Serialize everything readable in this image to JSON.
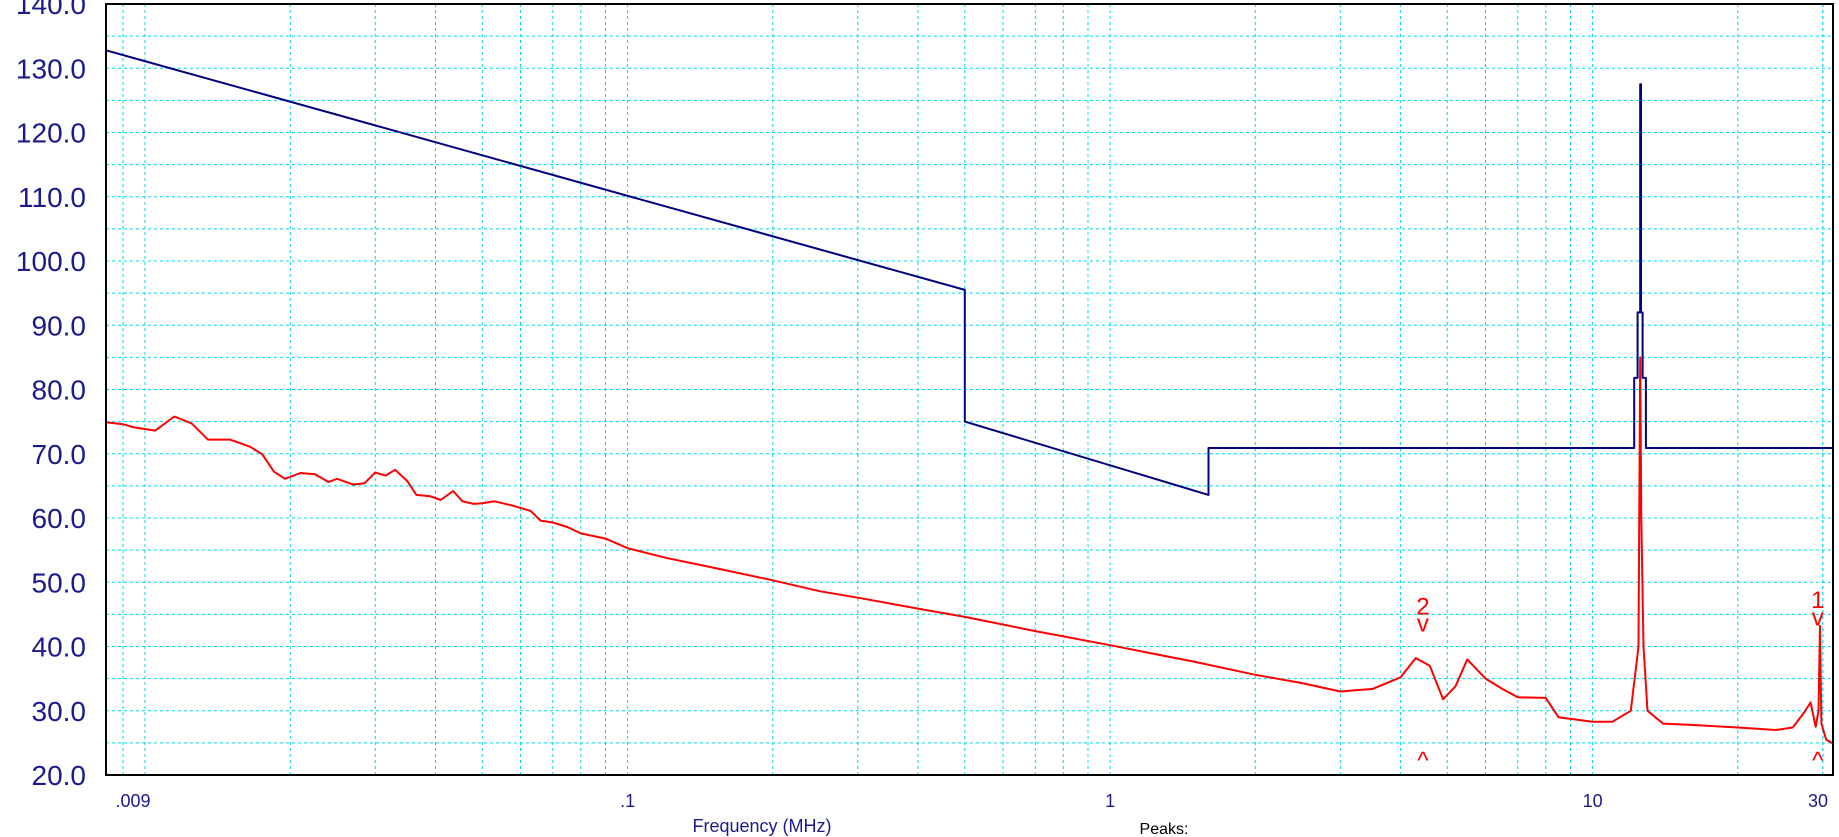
{
  "chart_data": {
    "type": "line",
    "title": "",
    "xlabel": "Frequency (MHz)",
    "ylabel": "",
    "xscale": "log",
    "xlim": [
      0.0083,
      31.5
    ],
    "ylim": [
      20.0,
      140.0
    ],
    "grid": true,
    "grid_color": "#00d8e8",
    "x_tick_labels": [
      {
        "value": 0.009,
        "label": ".009"
      },
      {
        "value": 0.1,
        "label": ".1"
      },
      {
        "value": 1,
        "label": "1"
      },
      {
        "value": 10,
        "label": "10"
      },
      {
        "value": 30,
        "label": "30"
      }
    ],
    "y_tick_labels": [
      {
        "value": 20,
        "label": "20.0"
      },
      {
        "value": 30,
        "label": "30.0"
      },
      {
        "value": 40,
        "label": "40.0"
      },
      {
        "value": 50,
        "label": "50.0"
      },
      {
        "value": 60,
        "label": "60.0"
      },
      {
        "value": 70,
        "label": "70.0"
      },
      {
        "value": 80,
        "label": "80.0"
      },
      {
        "value": 90,
        "label": "90.0"
      },
      {
        "value": 100,
        "label": "100.0"
      },
      {
        "value": 110,
        "label": "110.0"
      },
      {
        "value": 120,
        "label": "120.0"
      },
      {
        "value": 130,
        "label": "130.0"
      },
      {
        "value": 140,
        "label": "140.0"
      }
    ],
    "peaks_label": "Peaks:",
    "series": [
      {
        "color": "#000080",
        "points": [
          [
            0.0083,
            132.8
          ],
          [
            0.5,
            95.5
          ],
          [
            0.5,
            75.0
          ],
          [
            1.6,
            63.6
          ],
          [
            1.6,
            70.9
          ],
          [
            12.2,
            70.9
          ],
          [
            12.2,
            81.8
          ],
          [
            12.4,
            81.8
          ],
          [
            12.4,
            92.0
          ],
          [
            12.55,
            92.0
          ],
          [
            12.55,
            127.5
          ],
          [
            12.6,
            127.5
          ],
          [
            12.6,
            92.0
          ],
          [
            12.7,
            92.0
          ],
          [
            12.7,
            81.8
          ],
          [
            12.9,
            81.8
          ],
          [
            12.9,
            70.9
          ],
          [
            31.5,
            70.9
          ]
        ]
      },
      {
        "color": "#ff0000",
        "points": [
          [
            0.0083,
            74.9
          ],
          [
            0.009,
            74.6
          ],
          [
            0.0095,
            74.1
          ],
          [
            0.0105,
            73.6
          ],
          [
            0.0115,
            75.8
          ],
          [
            0.0125,
            74.7
          ],
          [
            0.0135,
            72.2
          ],
          [
            0.015,
            72.2
          ],
          [
            0.0165,
            71.1
          ],
          [
            0.0175,
            69.9
          ],
          [
            0.0185,
            67.2
          ],
          [
            0.0195,
            66.1
          ],
          [
            0.021,
            67.0
          ],
          [
            0.0225,
            66.8
          ],
          [
            0.024,
            65.6
          ],
          [
            0.025,
            66.1
          ],
          [
            0.027,
            65.2
          ],
          [
            0.0285,
            65.4
          ],
          [
            0.03,
            67.1
          ],
          [
            0.0315,
            66.6
          ],
          [
            0.033,
            67.5
          ],
          [
            0.035,
            65.7
          ],
          [
            0.0365,
            63.6
          ],
          [
            0.039,
            63.4
          ],
          [
            0.041,
            62.8
          ],
          [
            0.0435,
            64.2
          ],
          [
            0.0455,
            62.6
          ],
          [
            0.048,
            62.2
          ],
          [
            0.05,
            62.3
          ],
          [
            0.053,
            62.6
          ],
          [
            0.058,
            61.9
          ],
          [
            0.063,
            61.1
          ],
          [
            0.066,
            59.6
          ],
          [
            0.07,
            59.3
          ],
          [
            0.075,
            58.6
          ],
          [
            0.08,
            57.6
          ],
          [
            0.09,
            56.8
          ],
          [
            0.1,
            55.3
          ],
          [
            0.12,
            53.8
          ],
          [
            0.15,
            52.3
          ],
          [
            0.2,
            50.3
          ],
          [
            0.25,
            48.6
          ],
          [
            0.3,
            47.6
          ],
          [
            0.4,
            45.9
          ],
          [
            0.5,
            44.6
          ],
          [
            0.7,
            42.4
          ],
          [
            1.0,
            40.2
          ],
          [
            1.5,
            37.6
          ],
          [
            2.0,
            35.6
          ],
          [
            2.5,
            34.3
          ],
          [
            3.0,
            33.0
          ],
          [
            3.5,
            33.4
          ],
          [
            4.0,
            35.2
          ],
          [
            4.3,
            38.2
          ],
          [
            4.6,
            37.0
          ],
          [
            4.9,
            31.8
          ],
          [
            5.2,
            33.8
          ],
          [
            5.5,
            38.0
          ],
          [
            6.0,
            35.0
          ],
          [
            6.5,
            33.4
          ],
          [
            7.0,
            32.1
          ],
          [
            8.0,
            32.0
          ],
          [
            8.5,
            29.0
          ],
          [
            10.0,
            28.3
          ],
          [
            11.0,
            28.3
          ],
          [
            12.0,
            30.0
          ],
          [
            12.45,
            40.0
          ],
          [
            12.55,
            85.0
          ],
          [
            12.62,
            60.0
          ],
          [
            12.75,
            40.0
          ],
          [
            13.0,
            30.0
          ],
          [
            14.0,
            28.0
          ],
          [
            16.0,
            27.8
          ],
          [
            20.0,
            27.4
          ],
          [
            24.0,
            27.0
          ],
          [
            26.0,
            27.4
          ],
          [
            27.5,
            29.8
          ],
          [
            28.3,
            31.3
          ],
          [
            29.0,
            27.5
          ],
          [
            29.4,
            30.0
          ],
          [
            29.6,
            43.2
          ],
          [
            29.8,
            28.0
          ],
          [
            30.5,
            25.5
          ],
          [
            31.5,
            24.9
          ]
        ]
      }
    ],
    "annotations": [
      {
        "text": "2",
        "x": 4.45,
        "y": 45.0,
        "color": "#ff0000"
      },
      {
        "text": "v",
        "x": 4.45,
        "y": 42.3,
        "color": "#ff0000"
      },
      {
        "text": "^",
        "x": 4.45,
        "y": 21.0,
        "color": "#ff0000"
      },
      {
        "text": "1",
        "x": 29.3,
        "y": 46.0,
        "color": "#ff0000"
      },
      {
        "text": "v",
        "x": 29.3,
        "y": 43.3,
        "color": "#ff0000"
      },
      {
        "text": "^",
        "x": 29.3,
        "y": 21.0,
        "color": "#ff0000"
      }
    ]
  }
}
